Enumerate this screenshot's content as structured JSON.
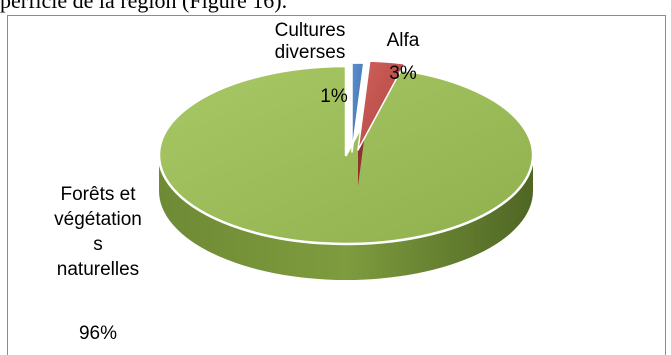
{
  "document": {
    "caption_line": "perficie de la région (Figure 16)."
  },
  "chart_data": {
    "type": "pie",
    "style": "3d",
    "title": "",
    "slices": [
      {
        "label": "Cultures diverses",
        "value": 1,
        "color": "#4a7ebb",
        "label_lines": [
          "Cultures",
          "diverses"
        ],
        "pct_text": "1%"
      },
      {
        "label": "Alfa",
        "value": 3,
        "color": "#c0504d",
        "label_lines": [
          "Alfa"
        ],
        "pct_text": "3%"
      },
      {
        "label": "Forêts et végétations naturelles",
        "value": 96,
        "color": "#9bbb59",
        "label_lines": [
          "Forêts et",
          "végétation",
          "s",
          "naturelles"
        ],
        "pct_text": "96%"
      }
    ],
    "legend": "none",
    "data_labels": "category name and percentage"
  }
}
